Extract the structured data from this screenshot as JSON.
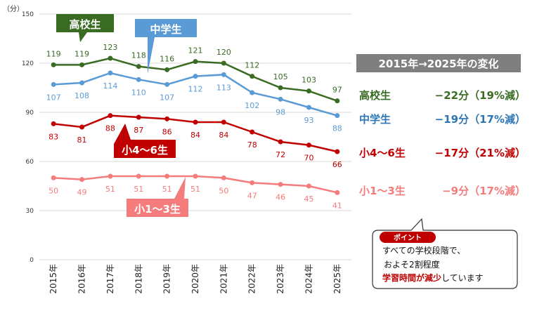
{
  "chart_data": {
    "type": "line",
    "unit_label": "（分）",
    "ylim": [
      0,
      150
    ],
    "y_ticks": [
      0,
      30,
      60,
      90,
      120,
      150
    ],
    "grid": true,
    "categories": [
      "2015年",
      "2016年",
      "2017年",
      "2018年",
      "2019年",
      "2020年",
      "2021年",
      "2022年",
      "2023年",
      "2024年",
      "2025年"
    ],
    "series": [
      {
        "name": "高校生",
        "color": "#3a6b23",
        "values": [
          119,
          119,
          123,
          118,
          116,
          121,
          120,
          112,
          105,
          103,
          97
        ]
      },
      {
        "name": "中学生",
        "color": "#5b9bd5",
        "values": [
          107,
          108,
          114,
          110,
          107,
          112,
          113,
          102,
          98,
          93,
          88
        ]
      },
      {
        "name": "小4～6生",
        "color": "#c00000",
        "values": [
          83,
          81,
          88,
          87,
          86,
          84,
          84,
          78,
          72,
          70,
          66
        ]
      },
      {
        "name": "小1～3生",
        "color": "#f47c7c",
        "values": [
          50,
          49,
          51,
          51,
          51,
          51,
          50,
          47,
          46,
          45,
          41
        ]
      }
    ]
  },
  "summary": {
    "title": "2015年→2025年の変化",
    "rows": [
      {
        "label": "高校生",
        "change": "−22分（19%減）",
        "color": "#3a6b23"
      },
      {
        "label": "中学生",
        "change": "−19分（17%減）",
        "color": "#2e75b6"
      },
      {
        "label": "小4～6生",
        "change": "−17分（21%減）",
        "color": "#c00000"
      },
      {
        "label": "小1～3生",
        "change": "−9分（17%減）",
        "color": "#f47c7c"
      }
    ]
  },
  "point": {
    "badge": "ポイント",
    "line1": "すべての学校段階で、",
    "line2": "およそ2割程度",
    "line3_highlight": "学習時間が減少",
    "line3_rest": "しています",
    "highlight_color": "#c00000"
  }
}
